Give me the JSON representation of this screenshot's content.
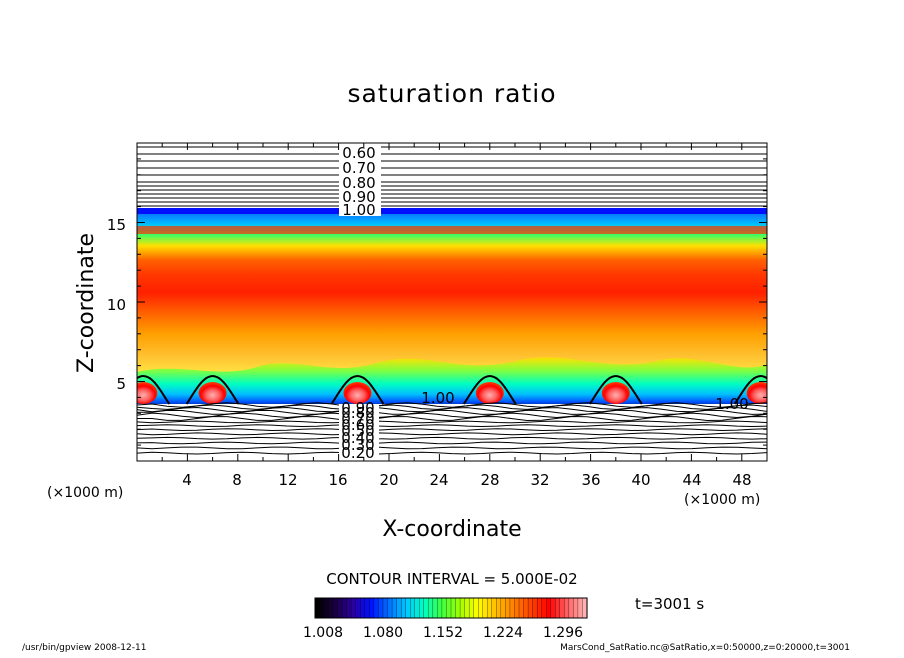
{
  "chart_data": {
    "type": "heatmap",
    "title": "saturation ratio",
    "xlabel": "X-coordinate",
    "ylabel": "Z-coordinate",
    "x_unit": "(×1000 m)",
    "y_unit": "(×1000 m)",
    "xlim": [
      0,
      50
    ],
    "ylim": [
      0,
      20
    ],
    "x_ticks": [
      "4",
      "8",
      "12",
      "16",
      "20",
      "24",
      "28",
      "32",
      "36",
      "40",
      "44",
      "48"
    ],
    "y_ticks": [
      "5",
      "10",
      "15"
    ],
    "upper_contour_labels": [
      "0.60",
      "0.70",
      "0.80",
      "0.90",
      "1.00"
    ],
    "lower_contour_labels": [
      "0.90",
      "0.80",
      "0.70",
      "0.60",
      "0.50",
      "0.40",
      "0.30",
      "0.20"
    ],
    "mid_contour_labels": [
      "1.00",
      "1.00"
    ],
    "contour_interval_text": "CONTOUR INTERVAL = 5.000E-02",
    "colorbar": {
      "min": 1.008,
      "max": 1.332,
      "tick_labels": [
        "1.008",
        "1.080",
        "1.152",
        "1.224",
        "1.296"
      ],
      "colors": [
        "#000000",
        "#1a0040",
        "#2a00a0",
        "#0010ff",
        "#0070ff",
        "#00c8ff",
        "#00ffc0",
        "#40ff40",
        "#a0ff00",
        "#ffff00",
        "#ffc000",
        "#ff8000",
        "#ff4000",
        "#ff0000",
        "#ff6060",
        "#ffb0b0"
      ]
    },
    "time_label": "t=3001 s",
    "bumps_x": [
      0.5,
      6,
      17.5,
      28,
      38,
      49.5
    ]
  },
  "footer": {
    "left": "/usr/bin/gpview   2008-12-11",
    "right": "MarsCond_SatRatio.nc@SatRatio,x=0:50000,z=0:20000,t=3001"
  }
}
